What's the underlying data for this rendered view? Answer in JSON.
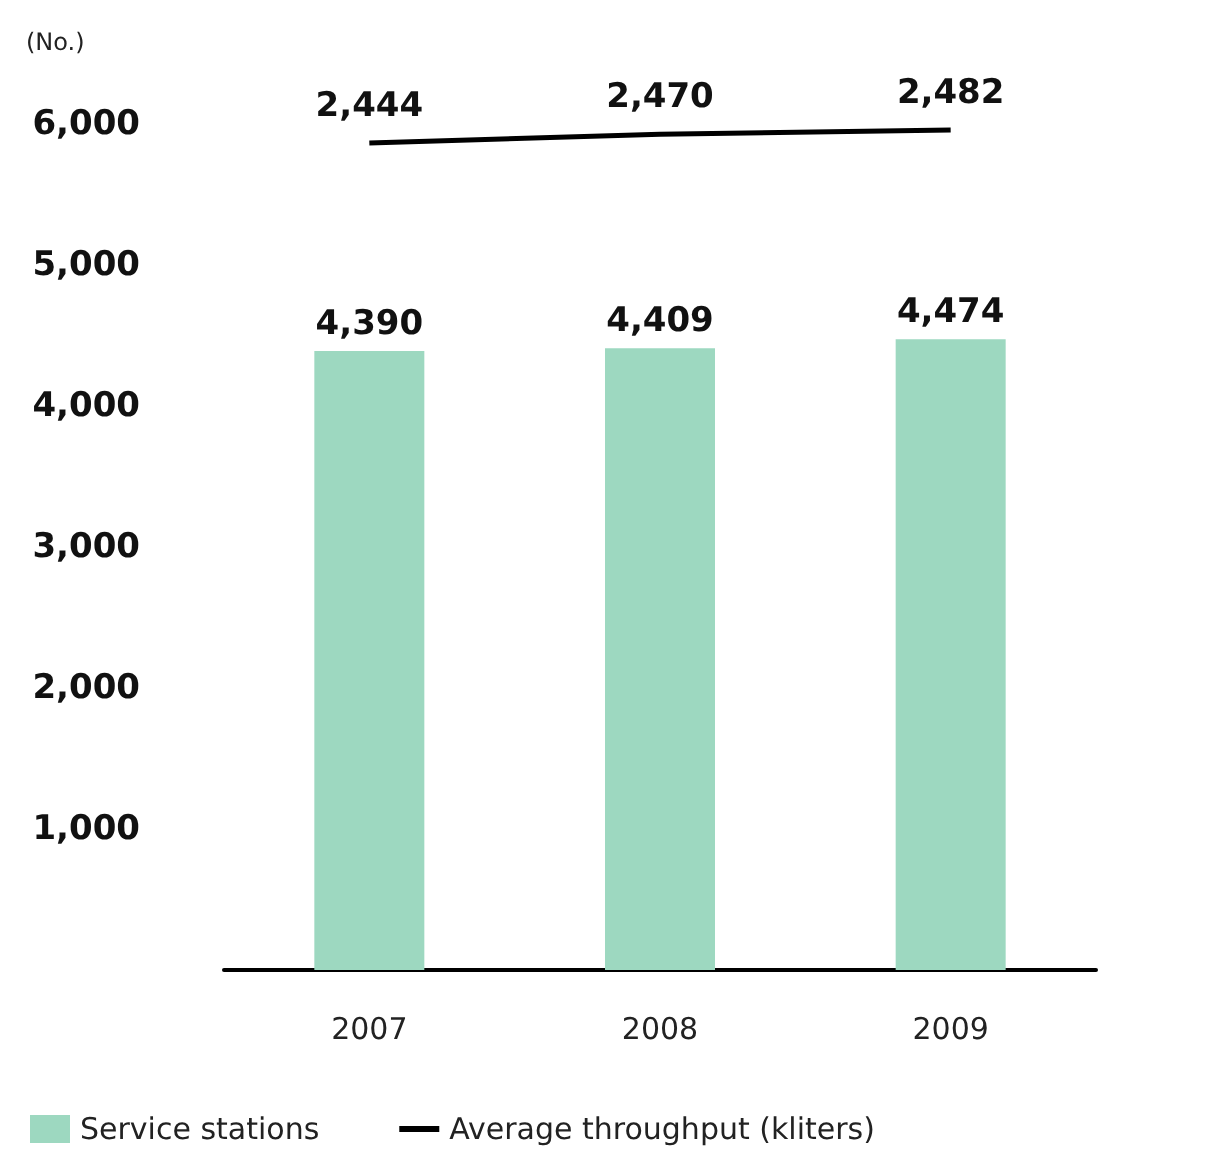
{
  "chart_data": {
    "type": "bar",
    "ylabel": "(No.)",
    "categories": [
      "2007",
      "2008",
      "2009"
    ],
    "series": [
      {
        "name": "Service stations",
        "color": "#9dd8c0",
        "values": [
          4390,
          4409,
          4474
        ],
        "value_labels": [
          "4,390",
          "4,409",
          "4,474"
        ]
      },
      {
        "name": "Average throughput (kliters)",
        "type": "line",
        "axis": "y2",
        "color": "#000000",
        "values": [
          2444,
          2470,
          2482
        ],
        "value_labels": [
          "2,444",
          "2,470",
          "2,482"
        ]
      }
    ],
    "ylim": [
      0,
      6000
    ],
    "yticks": [
      {
        "value": 1000,
        "label": "1,000"
      },
      {
        "value": 2000,
        "label": "2,000"
      },
      {
        "value": 3000,
        "label": "3,000"
      },
      {
        "value": 4000,
        "label": "4,000"
      },
      {
        "value": 5000,
        "label": "5,000"
      },
      {
        "value": 6000,
        "label": "6,000"
      }
    ],
    "grid": false,
    "legend": "bottom left",
    "marker": "none"
  }
}
